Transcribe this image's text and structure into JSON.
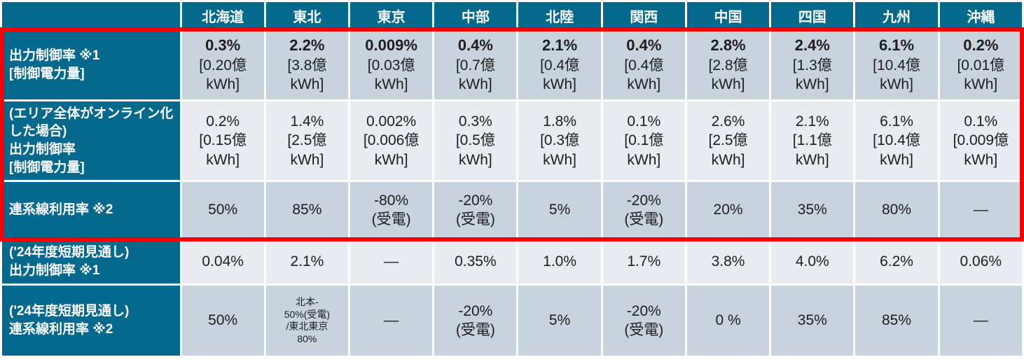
{
  "colors": {
    "header_bg": "#05698D",
    "header_text": "#FFFFFF",
    "row_dark": "#C9D3DE",
    "row_light": "#E9EBF1",
    "value_text": "#1E1E1E",
    "highlight_border": "#F80000"
  },
  "table": {
    "corner_label": "",
    "regions": [
      "北海道",
      "東北",
      "東京",
      "中部",
      "北陸",
      "関西",
      "中国",
      "四国",
      "九州",
      "沖縄"
    ],
    "highlighted_row_indices": [
      0,
      1,
      2
    ],
    "rows": [
      {
        "id": "output-control-rate",
        "label": "出力制御率 ※1\n[制御電力量]",
        "bold_first_line": true,
        "cells": [
          "0.3%\n[0.20億\nkWh]",
          "2.2%\n[3.8億\nkWh]",
          "0.009%\n[0.03億\nkWh]",
          "0.4%\n[0.7億\nkWh]",
          "2.1%\n[0.4億\nkWh]",
          "0.4%\n[0.4億\nkWh]",
          "2.8%\n[2.8億\nkWh]",
          "2.4%\n[1.3億\nkWh]",
          "6.1%\n[10.4億\nkWh]",
          "0.2%\n[0.01億\nkWh]"
        ]
      },
      {
        "id": "output-control-rate-online",
        "label": "(エリア全体がオンライン化した場合)\n出力制御率\n[制御電力量]",
        "bold_first_line": false,
        "cells": [
          "0.2%\n[0.15億\nkWh]",
          "1.4%\n[2.5億\nkWh]",
          "0.002%\n[0.006億\nkWh]",
          "0.3%\n[0.5億\nkWh]",
          "1.8%\n[0.3億\nkWh]",
          "0.1%\n[0.1億\nkWh]",
          "2.6%\n[2.5億\nkWh]",
          "2.1%\n[1.1億\nkWh]",
          "6.1%\n[10.4億\nkWh]",
          "0.1%\n[0.009億\nkWh]"
        ]
      },
      {
        "id": "interconnector-usage-rate",
        "label": "連系線利用率 ※2",
        "bold_first_line": false,
        "cells": [
          "50%",
          "85%",
          "-80%\n(受電)",
          "-20%\n(受電)",
          "5%",
          "-20%\n(受電)",
          "20%",
          "35%",
          "80%",
          "—"
        ]
      },
      {
        "id": "fy24-output-control-rate",
        "label": "('24年度短期見通し)\n出力制御率 ※1",
        "bold_first_line": false,
        "cells": [
          "0.04%",
          "2.1%",
          "—",
          "0.35%",
          "1.0%",
          "1.7%",
          "3.8%",
          "4.0%",
          "6.2%",
          "0.06%"
        ]
      },
      {
        "id": "fy24-interconnector-usage-rate",
        "label": "('24年度短期見通し)\n連系線利用率 ※2",
        "bold_first_line": false,
        "cells": [
          "50%",
          {
            "text": "北本-\n50%(受電)\n/東北東京\n80%",
            "small": true
          },
          "—",
          "-20%\n(受電)",
          "5%",
          "-20%\n(受電)",
          "0 %",
          "35%",
          "85%",
          "—"
        ]
      }
    ]
  }
}
